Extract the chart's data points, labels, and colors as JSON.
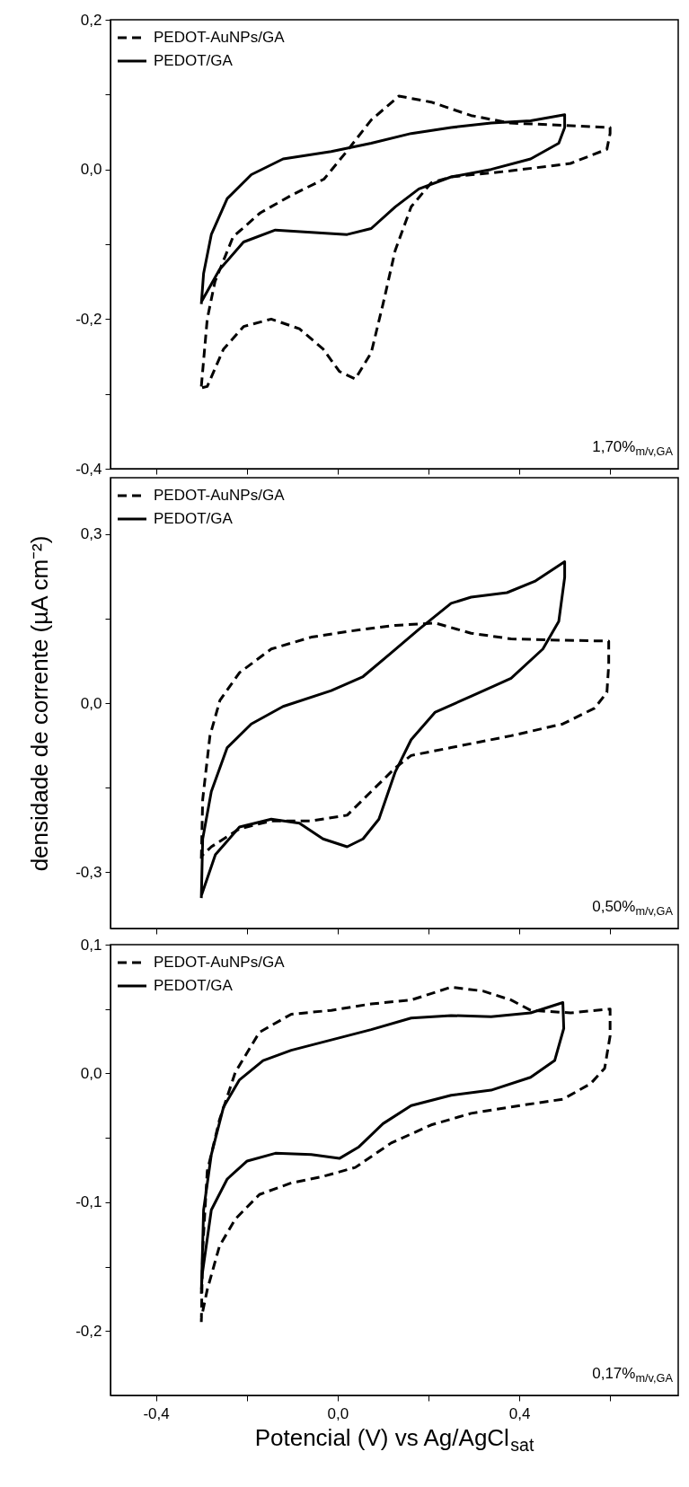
{
  "chart_data": [
    {
      "type": "line",
      "xlim": [
        -0.5,
        0.75
      ],
      "xticks": [
        {
          "value": -0.4,
          "label": null
        },
        {
          "value": -0.2,
          "label": null
        },
        {
          "value": 0,
          "label": null
        },
        {
          "value": 0.2,
          "label": null
        },
        {
          "value": 0.4,
          "label": null
        },
        {
          "value": 0.6,
          "label": null
        }
      ],
      "ylim": [
        -0.4,
        0.2
      ],
      "yticks": [
        {
          "value": -0.4,
          "label": "-0,4"
        },
        {
          "value": -0.3,
          "label": null
        },
        {
          "value": -0.2,
          "label": "-0,2"
        },
        {
          "value": -0.1,
          "label": null
        },
        {
          "value": 0,
          "label": "0,0"
        },
        {
          "value": 0.1,
          "label": null
        },
        {
          "value": 0.2,
          "label": "0,2"
        }
      ],
      "tick_labels": "y",
      "grid": false,
      "legend": "top left",
      "annotations": [
        "1,70%$_{m/v,GA}$"
      ],
      "series": [
        {
          "name": "PEDOT-AuNPs/GA",
          "color": "#000000",
          "line_style": "dashed",
          "x": [
            -0.3,
            -0.287,
            -0.27,
            -0.23,
            -0.17,
            -0.1,
            -0.03,
            0.02,
            0.074,
            0.135,
            0.206,
            0.294,
            0.38,
            0.496,
            0.6,
            0.6,
            0.593,
            0.513,
            0.38,
            0.25,
            0.206,
            0.162,
            0.127,
            0.1,
            0.074,
            0.039,
            0.004,
            -0.032,
            -0.084,
            -0.146,
            -0.207,
            -0.251,
            -0.287,
            -0.3
          ],
          "values": [
            -0.29,
            -0.2,
            -0.15,
            -0.09,
            -0.058,
            -0.034,
            -0.013,
            0.024,
            0.066,
            0.098,
            0.09,
            0.072,
            0.062,
            0.059,
            0.056,
            0.048,
            0.027,
            0.008,
            -0.002,
            -0.01,
            -0.018,
            -0.05,
            -0.108,
            -0.18,
            -0.245,
            -0.28,
            -0.27,
            -0.24,
            -0.213,
            -0.2,
            -0.21,
            -0.24,
            -0.29,
            -0.292
          ]
        },
        {
          "name": "PEDOT/GA",
          "color": "#000000",
          "line_style": "solid",
          "x": [
            -0.3,
            -0.295,
            -0.278,
            -0.243,
            -0.19,
            -0.12,
            -0.014,
            0.074,
            0.162,
            0.25,
            0.338,
            0.425,
            0.5,
            0.5,
            0.487,
            0.425,
            0.338,
            0.25,
            0.179,
            0.127,
            0.074,
            0.021,
            -0.058,
            -0.137,
            -0.207,
            -0.26,
            -0.3
          ],
          "values": [
            -0.18,
            -0.139,
            -0.087,
            -0.039,
            -0.007,
            0.014,
            0.024,
            0.035,
            0.048,
            0.056,
            0.062,
            0.065,
            0.073,
            0.056,
            0.035,
            0.014,
            0,
            -0.01,
            -0.026,
            -0.05,
            -0.079,
            -0.087,
            -0.084,
            -0.081,
            -0.097,
            -0.134,
            -0.177
          ]
        }
      ]
    },
    {
      "type": "line",
      "ylabel": "densidade de corrente (µA cm⁻²)",
      "xlim": [
        -0.5,
        0.75
      ],
      "xticks": [
        {
          "value": -0.4,
          "label": null
        },
        {
          "value": -0.2,
          "label": null
        },
        {
          "value": 0,
          "label": null
        },
        {
          "value": 0.2,
          "label": null
        },
        {
          "value": 0.4,
          "label": null
        },
        {
          "value": 0.6,
          "label": null
        }
      ],
      "ylim": [
        -0.4,
        0.4
      ],
      "yticks": [
        {
          "value": -0.3,
          "label": "-0,3"
        },
        {
          "value": -0.15,
          "label": null
        },
        {
          "value": 0,
          "label": "0,0"
        },
        {
          "value": 0.15,
          "label": null
        },
        {
          "value": 0.3,
          "label": "0,3"
        }
      ],
      "tick_labels": "y",
      "grid": false,
      "legend": "top left",
      "annotations": [
        "0,50%$_{m/v,GA}$"
      ],
      "series": [
        {
          "name": "PEDOT-AuNPs/GA",
          "color": "#000000",
          "line_style": "dashed",
          "x": [
            -0.3,
            -0.297,
            -0.281,
            -0.259,
            -0.216,
            -0.146,
            -0.058,
            0.03,
            0.127,
            0.215,
            0.294,
            0.382,
            0.47,
            0.597,
            0.597,
            0.593,
            0.566,
            0.496,
            0.382,
            0.25,
            0.162,
            0.127,
            0.074,
            0.021,
            -0.058,
            -0.146,
            -0.216,
            -0.278,
            -0.3
          ],
          "values": [
            -0.276,
            -0.171,
            -0.058,
            0.005,
            0.054,
            0.096,
            0.117,
            0.128,
            0.138,
            0.142,
            0.124,
            0.114,
            0.112,
            0.11,
            0.068,
            0.019,
            -0.009,
            -0.037,
            -0.058,
            -0.079,
            -0.093,
            -0.115,
            -0.157,
            -0.199,
            -0.209,
            -0.209,
            -0.223,
            -0.255,
            -0.272
          ]
        },
        {
          "name": "PEDOT/GA",
          "color": "#000000",
          "line_style": "solid",
          "x": [
            -0.3,
            -0.297,
            -0.278,
            -0.243,
            -0.19,
            -0.12,
            -0.014,
            0.056,
            0.118,
            0.179,
            0.25,
            0.294,
            0.373,
            0.434,
            0.5,
            0.5,
            0.487,
            0.452,
            0.382,
            0.294,
            0.215,
            0.162,
            0.127,
            0.091,
            0.056,
            0.021,
            -0.032,
            -0.084,
            -0.146,
            -0.216,
            -0.269,
            -0.3
          ],
          "values": [
            -0.346,
            -0.241,
            -0.157,
            -0.079,
            -0.037,
            -0.006,
            0.022,
            0.047,
            0.089,
            0.131,
            0.177,
            0.188,
            0.196,
            0.216,
            0.251,
            0.223,
            0.145,
            0.096,
            0.044,
            0.012,
            -0.016,
            -0.065,
            -0.122,
            -0.206,
            -0.241,
            -0.255,
            -0.241,
            -0.213,
            -0.206,
            -0.22,
            -0.269,
            -0.342
          ]
        }
      ]
    },
    {
      "type": "line",
      "xlabel": "Potencial (V) vs Ag/AgCl$_{sat}$",
      "xlim": [
        -0.5,
        0.75
      ],
      "xticks": [
        {
          "value": -0.4,
          "label": "-0,4"
        },
        {
          "value": -0.2,
          "label": null
        },
        {
          "value": 0,
          "label": "0,0"
        },
        {
          "value": 0.2,
          "label": null
        },
        {
          "value": 0.4,
          "label": "0,4"
        },
        {
          "value": 0.6,
          "label": null
        }
      ],
      "ylim": [
        -0.25,
        0.1
      ],
      "yticks": [
        {
          "value": -0.2,
          "label": "-0,2"
        },
        {
          "value": -0.15,
          "label": null
        },
        {
          "value": -0.1,
          "label": "-0,1"
        },
        {
          "value": -0.05,
          "label": null
        },
        {
          "value": 0,
          "label": "0,0"
        },
        {
          "value": 0.05,
          "label": null
        },
        {
          "value": 0.1,
          "label": "0,1"
        }
      ],
      "grid": false,
      "legend": "top left",
      "annotations": [
        "0,17%$_{m/v,GA}$"
      ],
      "series": [
        {
          "name": "PEDOT-AuNPs/GA",
          "color": "#000000",
          "line_style": "dashed",
          "x": [
            -0.3,
            -0.297,
            -0.287,
            -0.26,
            -0.225,
            -0.172,
            -0.102,
            -0.014,
            0.074,
            0.162,
            0.25,
            0.32,
            0.382,
            0.425,
            0.513,
            0.6,
            0.6,
            0.588,
            0.557,
            0.496,
            0.382,
            0.294,
            0.206,
            0.118,
            0.039,
            -0.032,
            -0.102,
            -0.172,
            -0.225,
            -0.26,
            -0.287,
            -0.3
          ],
          "values": [
            -0.193,
            -0.137,
            -0.076,
            -0.036,
            0.001,
            0.032,
            0.046,
            0.049,
            0.054,
            0.057,
            0.067,
            0.064,
            0.057,
            0.049,
            0.047,
            0.05,
            0.029,
            0.004,
            -0.008,
            -0.02,
            -0.026,
            -0.031,
            -0.04,
            -0.054,
            -0.073,
            -0.08,
            -0.085,
            -0.094,
            -0.113,
            -0.134,
            -0.168,
            -0.19
          ]
        },
        {
          "name": "PEDOT/GA",
          "color": "#000000",
          "line_style": "solid",
          "x": [
            -0.3,
            -0.295,
            -0.278,
            -0.251,
            -0.216,
            -0.164,
            -0.102,
            -0.014,
            0.074,
            0.162,
            0.25,
            0.338,
            0.425,
            0.496,
            0.498,
            0.478,
            0.425,
            0.338,
            0.25,
            0.162,
            0.1,
            0.047,
            0.004,
            -0.058,
            -0.137,
            -0.199,
            -0.243,
            -0.278,
            -0.298,
            -0.3
          ],
          "values": [
            -0.171,
            -0.106,
            -0.063,
            -0.026,
            -0.005,
            0.01,
            0.018,
            0.026,
            0.034,
            0.043,
            0.045,
            0.044,
            0.047,
            0.055,
            0.035,
            0.01,
            -0.003,
            -0.013,
            -0.017,
            -0.025,
            -0.039,
            -0.057,
            -0.066,
            -0.063,
            -0.062,
            -0.068,
            -0.082,
            -0.106,
            -0.156,
            -0.168
          ]
        }
      ]
    }
  ]
}
